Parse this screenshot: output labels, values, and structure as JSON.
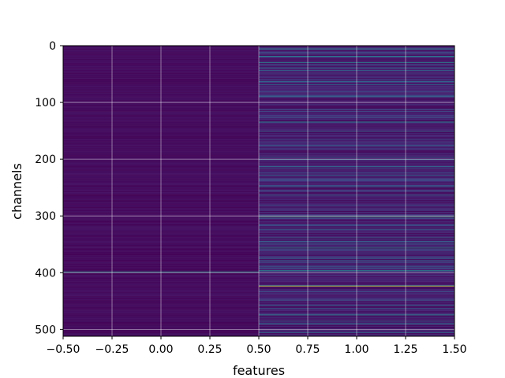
{
  "chart_data": {
    "type": "heatmap",
    "title": "",
    "xlabel": "features",
    "ylabel": "channels",
    "xlim": [
      -0.5,
      1.5
    ],
    "ylim": [
      512,
      0
    ],
    "y_inverted": true,
    "grid": true,
    "colormap": "viridis",
    "n_columns": 2,
    "n_rows": 512,
    "x_ticks": [
      -0.5,
      -0.25,
      0.0,
      0.25,
      0.5,
      0.75,
      1.0,
      1.25,
      1.5
    ],
    "x_tick_labels": [
      "−0.50",
      "−0.25",
      "0.00",
      "0.25",
      "0.50",
      "0.75",
      "1.00",
      "1.25",
      "1.50"
    ],
    "y_ticks": [
      0,
      100,
      200,
      300,
      400,
      500
    ],
    "y_tick_labels": [
      "0",
      "100",
      "200",
      "300",
      "400",
      "500"
    ],
    "column_0": {
      "description": "uniformly dark purple with faint variation",
      "base_value": 0.04,
      "highlights": [
        {
          "row": 398,
          "value": 0.55
        }
      ]
    },
    "column_1": {
      "description": "dark purple with many blue-teal stripes",
      "base_value": 0.1,
      "highlights": [
        {
          "row": 5,
          "value": 0.45
        },
        {
          "row": 18,
          "value": 0.4
        },
        {
          "row": 29,
          "value": 0.5
        },
        {
          "row": 43,
          "value": 0.35
        },
        {
          "row": 62,
          "value": 0.3
        },
        {
          "row": 88,
          "value": 0.35
        },
        {
          "row": 134,
          "value": 0.5
        },
        {
          "row": 150,
          "value": 0.35
        },
        {
          "row": 175,
          "value": 0.3
        },
        {
          "row": 212,
          "value": 0.35
        },
        {
          "row": 228,
          "value": 0.35
        },
        {
          "row": 246,
          "value": 0.3
        },
        {
          "row": 263,
          "value": 0.35
        },
        {
          "row": 280,
          "value": 0.3
        },
        {
          "row": 301,
          "value": 0.65
        },
        {
          "row": 323,
          "value": 0.35
        },
        {
          "row": 338,
          "value": 0.35
        },
        {
          "row": 356,
          "value": 0.5
        },
        {
          "row": 372,
          "value": 0.3
        },
        {
          "row": 388,
          "value": 0.35
        },
        {
          "row": 396,
          "value": 0.5
        },
        {
          "row": 423,
          "value": 0.95
        },
        {
          "row": 448,
          "value": 0.3
        },
        {
          "row": 463,
          "value": 0.35
        },
        {
          "row": 474,
          "value": 0.5
        },
        {
          "row": 490,
          "value": 0.3
        },
        {
          "row": 505,
          "value": 0.4
        }
      ]
    }
  }
}
